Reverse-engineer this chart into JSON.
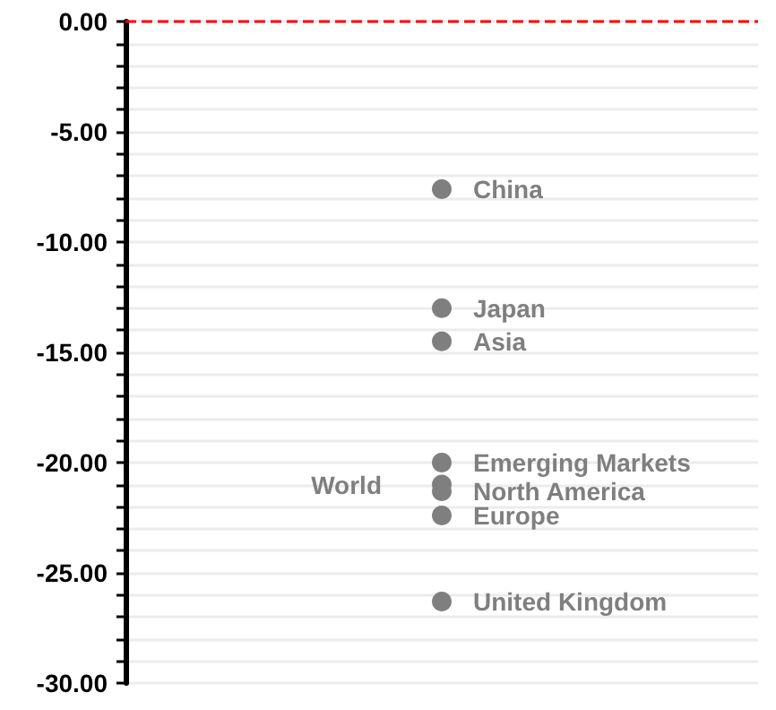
{
  "chart_data": {
    "type": "scatter",
    "categories": [
      null
    ],
    "series": [
      {
        "name": "China",
        "color": "#7f7f7f",
        "values": [
          -7.6
        ]
      },
      {
        "name": "Japan",
        "color": "#7f7f7f",
        "values": [
          -13.0
        ]
      },
      {
        "name": "Asia",
        "color": "#7f7f7f",
        "values": [
          -14.5
        ]
      },
      {
        "name": "Emerging Markets",
        "color": "#7f7f7f",
        "values": [
          -20.0
        ]
      },
      {
        "name": "World",
        "color": "#7f7f7f",
        "values": [
          -21.0
        ]
      },
      {
        "name": "North America",
        "color": "#7f7f7f",
        "values": [
          -21.3
        ]
      },
      {
        "name": "Europe",
        "color": "#7f7f7f",
        "values": [
          -22.4
        ]
      },
      {
        "name": "United Kingdom",
        "color": "#7f7f7f",
        "values": [
          -26.3
        ]
      }
    ],
    "ylim": [
      -30,
      0
    ],
    "yticks": [
      {
        "value": -30,
        "label": "-30.00"
      },
      {
        "value": -29,
        "label": null
      },
      {
        "value": -28,
        "label": null
      },
      {
        "value": -27,
        "label": null
      },
      {
        "value": -26,
        "label": null
      },
      {
        "value": -25,
        "label": "-25.00"
      },
      {
        "value": -24,
        "label": null
      },
      {
        "value": -23,
        "label": null
      },
      {
        "value": -22,
        "label": null
      },
      {
        "value": -21,
        "label": null
      },
      {
        "value": -20,
        "label": "-20.00"
      },
      {
        "value": -19,
        "label": null
      },
      {
        "value": -18,
        "label": null
      },
      {
        "value": -17,
        "label": null
      },
      {
        "value": -16,
        "label": null
      },
      {
        "value": -15,
        "label": "-15.00"
      },
      {
        "value": -14,
        "label": null
      },
      {
        "value": -13,
        "label": null
      },
      {
        "value": -12,
        "label": null
      },
      {
        "value": -11,
        "label": null
      },
      {
        "value": -10,
        "label": "-10.00"
      },
      {
        "value": -9,
        "label": null
      },
      {
        "value": -8,
        "label": null
      },
      {
        "value": -7,
        "label": null
      },
      {
        "value": -6,
        "label": null
      },
      {
        "value": -5,
        "label": "-5.00"
      },
      {
        "value": -4,
        "label": null
      },
      {
        "value": -3,
        "label": null
      },
      {
        "value": -2,
        "label": null
      },
      {
        "value": -1,
        "label": null
      },
      {
        "value": 0,
        "label": "0.00"
      }
    ],
    "ref_lines": [
      {
        "axis": "y",
        "value": 0,
        "color": "#ff0000",
        "line_style": "dashed"
      }
    ],
    "grid": "y",
    "legend": false,
    "marker": "circle",
    "tick_labels": "y"
  }
}
